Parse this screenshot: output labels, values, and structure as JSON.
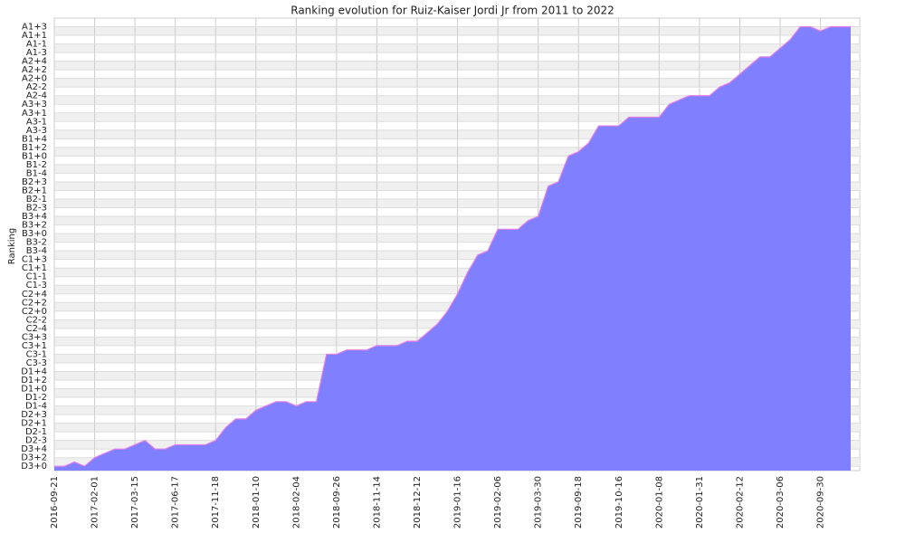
{
  "chart_data": {
    "type": "area",
    "title": "Ranking evolution for Ruiz-Kaiser Jordi Jr from 2011 to 2022",
    "y_label": "Ranking",
    "categories": [
      "2016-09-21",
      null,
      null,
      null,
      "2017-02-01",
      null,
      null,
      null,
      "2017-03-15",
      null,
      null,
      null,
      "2017-06-17",
      null,
      null,
      null,
      "2017-11-18",
      null,
      null,
      null,
      "2018-01-10",
      null,
      null,
      null,
      "2018-02-04",
      null,
      null,
      null,
      "2018-09-26",
      null,
      null,
      null,
      "2018-11-14",
      null,
      null,
      null,
      "2018-12-12",
      null,
      null,
      null,
      "2019-01-16",
      null,
      null,
      null,
      "2019-02-06",
      null,
      null,
      null,
      "2019-03-30",
      null,
      null,
      null,
      "2019-09-18",
      null,
      null,
      null,
      "2019-10-16",
      null,
      null,
      null,
      "2020-01-08",
      null,
      null,
      null,
      "2020-01-31",
      null,
      null,
      null,
      "2020-02-12",
      null,
      null,
      null,
      "2020-03-06",
      null,
      null,
      null,
      "2020-09-30",
      null,
      null,
      null
    ],
    "values": [
      0,
      0,
      0.5,
      0,
      1,
      1.5,
      2,
      2,
      2.5,
      3,
      2,
      2,
      2.5,
      2.5,
      2.5,
      2.5,
      3,
      4.5,
      5.5,
      5.5,
      6.5,
      7,
      7.5,
      7.5,
      7,
      7.5,
      7.5,
      13,
      13,
      13.5,
      13.5,
      13.5,
      14,
      14,
      14,
      14.5,
      14.5,
      15.5,
      16.5,
      18,
      20,
      22.5,
      24.5,
      25,
      27.5,
      27.5,
      27.5,
      28.5,
      29,
      32.5,
      33,
      36,
      36.5,
      37.5,
      39.5,
      39.5,
      39.5,
      40.5,
      40.5,
      40.5,
      40.5,
      42,
      42.5,
      43,
      43,
      43,
      44,
      44.5,
      45.5,
      46.5,
      47.5,
      47.5,
      48.5,
      49.5,
      51,
      51,
      50.5,
      51,
      51,
      51
    ],
    "color": "#8080ff",
    "line_color": "#e37ee8",
    "ylim": [
      -0.5,
      52
    ],
    "yticks": [
      {
        "value": 0,
        "label": "D3+0"
      },
      {
        "value": 1,
        "label": "D3+2"
      },
      {
        "value": 2,
        "label": "D3+4"
      },
      {
        "value": 3,
        "label": "D2-3"
      },
      {
        "value": 4,
        "label": "D2-1"
      },
      {
        "value": 5,
        "label": "D2+1"
      },
      {
        "value": 6,
        "label": "D2+3"
      },
      {
        "value": 7,
        "label": "D1-4"
      },
      {
        "value": 8,
        "label": "D1-2"
      },
      {
        "value": 9,
        "label": "D1+0"
      },
      {
        "value": 10,
        "label": "D1+2"
      },
      {
        "value": 11,
        "label": "D1+4"
      },
      {
        "value": 12,
        "label": "C3-3"
      },
      {
        "value": 13,
        "label": "C3-1"
      },
      {
        "value": 14,
        "label": "C3+1"
      },
      {
        "value": 15,
        "label": "C3+3"
      },
      {
        "value": 16,
        "label": "C2-4"
      },
      {
        "value": 17,
        "label": "C2-2"
      },
      {
        "value": 18,
        "label": "C2+0"
      },
      {
        "value": 19,
        "label": "C2+2"
      },
      {
        "value": 20,
        "label": "C2+4"
      },
      {
        "value": 21,
        "label": "C1-3"
      },
      {
        "value": 22,
        "label": "C1-1"
      },
      {
        "value": 23,
        "label": "C1+1"
      },
      {
        "value": 24,
        "label": "C1+3"
      },
      {
        "value": 25,
        "label": "B3-4"
      },
      {
        "value": 26,
        "label": "B3-2"
      },
      {
        "value": 27,
        "label": "B3+0"
      },
      {
        "value": 28,
        "label": "B3+2"
      },
      {
        "value": 29,
        "label": "B3+4"
      },
      {
        "value": 30,
        "label": "B2-3"
      },
      {
        "value": 31,
        "label": "B2-1"
      },
      {
        "value": 32,
        "label": "B2+1"
      },
      {
        "value": 33,
        "label": "B2+3"
      },
      {
        "value": 34,
        "label": "B1-4"
      },
      {
        "value": 35,
        "label": "B1-2"
      },
      {
        "value": 36,
        "label": "B1+0"
      },
      {
        "value": 37,
        "label": "B1+2"
      },
      {
        "value": 38,
        "label": "B1+4"
      },
      {
        "value": 39,
        "label": "A3-3"
      },
      {
        "value": 40,
        "label": "A3-1"
      },
      {
        "value": 41,
        "label": "A3+1"
      },
      {
        "value": 42,
        "label": "A3+3"
      },
      {
        "value": 43,
        "label": "A2-4"
      },
      {
        "value": 44,
        "label": "A2-2"
      },
      {
        "value": 45,
        "label": "A2+0"
      },
      {
        "value": 46,
        "label": "A2+2"
      },
      {
        "value": 47,
        "label": "A2+4"
      },
      {
        "value": 48,
        "label": "A1-3"
      },
      {
        "value": 49,
        "label": "A1-1"
      },
      {
        "value": 50,
        "label": "A1+1"
      },
      {
        "value": 51,
        "label": "A1+3"
      }
    ],
    "grid": true
  }
}
